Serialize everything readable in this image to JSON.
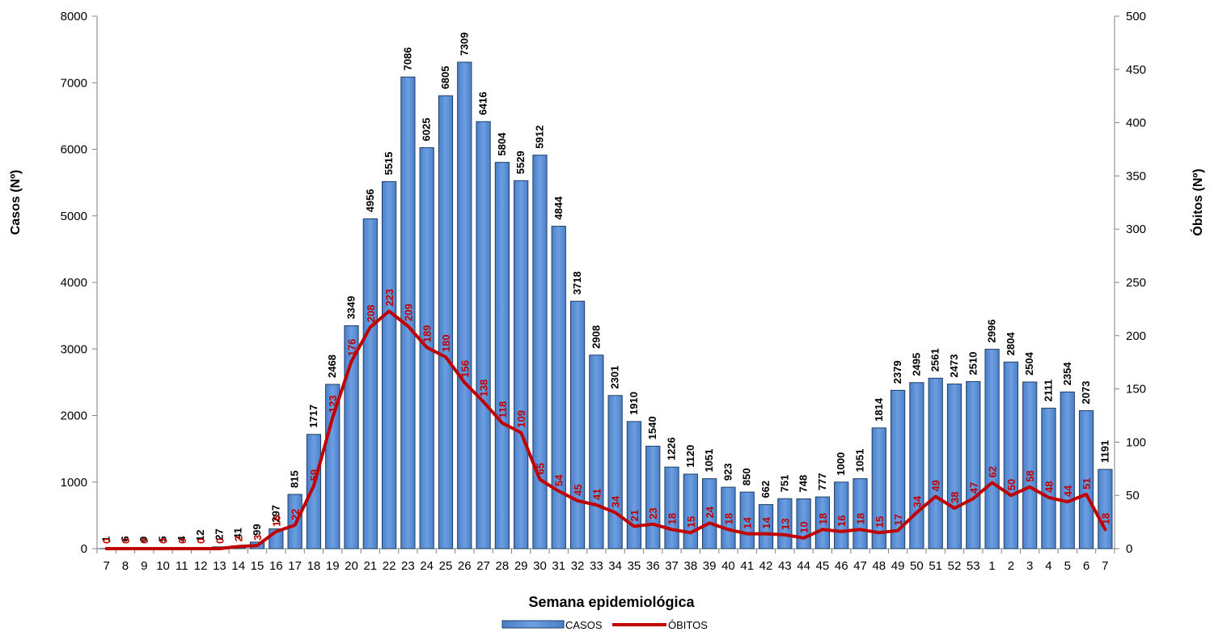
{
  "chart_data": {
    "type": "bar",
    "categories": [
      "7",
      "8",
      "9",
      "10",
      "11",
      "12",
      "13",
      "14",
      "15",
      "16",
      "17",
      "18",
      "19",
      "20",
      "21",
      "22",
      "23",
      "24",
      "25",
      "26",
      "27",
      "28",
      "29",
      "30",
      "31",
      "32",
      "33",
      "34",
      "35",
      "36",
      "37",
      "38",
      "39",
      "40",
      "41",
      "42",
      "43",
      "44",
      "45",
      "46",
      "47",
      "48",
      "49",
      "50",
      "51",
      "52",
      "53",
      "1",
      "2",
      "3",
      "4",
      "5",
      "6",
      "7"
    ],
    "series": [
      {
        "name": "CASOS",
        "type": "bar",
        "axis": "left",
        "values": [
          1,
          6,
          0,
          5,
          4,
          12,
          27,
          41,
          99,
          297,
          815,
          1717,
          2468,
          3349,
          4956,
          5515,
          7086,
          6025,
          6805,
          7309,
          6416,
          5804,
          5529,
          5912,
          4844,
          3718,
          2908,
          2301,
          1910,
          1540,
          1226,
          1120,
          1051,
          923,
          850,
          662,
          751,
          748,
          777,
          1000,
          1051,
          1814,
          2379,
          2495,
          2561,
          2473,
          2510,
          2996,
          2804,
          2504,
          2111,
          2354,
          2073,
          1191
        ]
      },
      {
        "name": "ÓBITOS",
        "type": "line",
        "axis": "right",
        "values": [
          0,
          0,
          0,
          0,
          0,
          0,
          0,
          2,
          3,
          16,
          22,
          59,
          123,
          176,
          208,
          223,
          209,
          189,
          180,
          156,
          138,
          118,
          109,
          65,
          54,
          45,
          41,
          34,
          21,
          23,
          18,
          15,
          24,
          18,
          14,
          14,
          13,
          10,
          18,
          16,
          18,
          15,
          17,
          34,
          49,
          38,
          47,
          62,
          50,
          58,
          48,
          44,
          51,
          18
        ]
      }
    ],
    "xlabel": "Semana epidemiológica",
    "ylabel": "Casos (Nº)",
    "y2label": "Óbitos (Nº)",
    "ylim": [
      0,
      8000
    ],
    "y2lim": [
      0,
      500
    ],
    "yticks": [
      0,
      1000,
      2000,
      3000,
      4000,
      5000,
      6000,
      7000,
      8000
    ],
    "y2ticks": [
      0,
      50,
      100,
      150,
      200,
      250,
      300,
      350,
      400,
      450,
      500
    ],
    "grid": false,
    "legend_position": "bottom",
    "colors": {
      "bar_fill": "#5b8fd6",
      "bar_stroke": "#1f3f66",
      "line": "#c00000",
      "line_label": "#c00000"
    }
  }
}
